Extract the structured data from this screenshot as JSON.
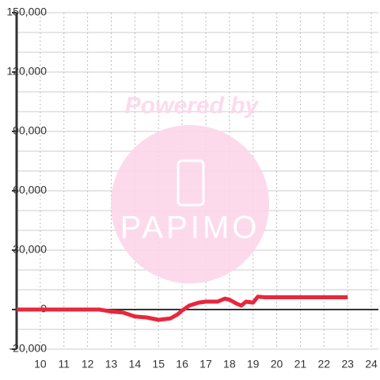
{
  "chart_data": {
    "type": "line",
    "x": [
      9,
      10,
      11,
      12,
      12.5,
      13,
      13.5,
      14,
      14.5,
      15,
      15.5,
      15.8,
      16,
      16.3,
      16.7,
      17,
      17.5,
      17.8,
      18,
      18.3,
      18.5,
      18.7,
      19,
      19.2,
      19.5,
      20,
      21,
      22,
      23
    ],
    "series": [
      {
        "name": "value",
        "color": "#e8273b",
        "values": [
          0,
          0,
          0,
          0,
          0,
          -1000,
          -1500,
          -3500,
          -4000,
          -5200,
          -4500,
          -2500,
          -500,
          2000,
          3500,
          4000,
          4000,
          5500,
          5000,
          3000,
          2000,
          4000,
          3500,
          6500,
          6200,
          6200,
          6200,
          6200,
          6200
        ]
      }
    ],
    "xlim": [
      9,
      24.3
    ],
    "xticks": [
      10,
      11,
      12,
      13,
      14,
      15,
      16,
      17,
      18,
      19,
      20,
      21,
      22,
      23,
      24
    ],
    "ylim": [
      -20000,
      150000
    ],
    "yticks": [
      {
        "value": -20000,
        "label": "-20,000"
      },
      0,
      {
        "value": 30000,
        "label": "30,000"
      },
      {
        "value": 60000,
        "label": "60,000"
      },
      {
        "value": 90000,
        "label": "90,000"
      },
      {
        "value": 120000,
        "label": "120,000"
      },
      {
        "value": 150000,
        "label": "150,000"
      }
    ],
    "y_minor_ticks": [
      -10000,
      10000,
      20000,
      40000,
      50000,
      70000,
      80000,
      100000,
      110000,
      130000,
      140000
    ],
    "grid": true,
    "watermark": {
      "top": "Powered by",
      "bottom": "PAPIMO"
    }
  }
}
